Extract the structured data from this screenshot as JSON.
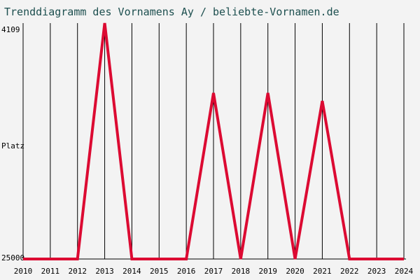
{
  "chart_data": {
    "type": "line",
    "title": "Trenddiagramm des Vornamens Ay / beliebte-Vornamen.de",
    "ylabel": "Platz",
    "ytick_top": "4109",
    "ytick_bottom": "25000",
    "y_inverted": true,
    "ylim": [
      25000,
      4109
    ],
    "categories": [
      "2010",
      "2011",
      "2012",
      "2013",
      "2014",
      "2015",
      "2016",
      "2017",
      "2018",
      "2019",
      "2020",
      "2021",
      "2022",
      "2023",
      "2024"
    ],
    "series": [
      {
        "values": [
          25000,
          25000,
          25000,
          4109,
          25000,
          25000,
          25000,
          10300,
          25000,
          10300,
          25000,
          11000,
          25000,
          25000,
          25000
        ],
        "color": "#dc0a32"
      }
    ],
    "grid": true,
    "legend": "none"
  }
}
